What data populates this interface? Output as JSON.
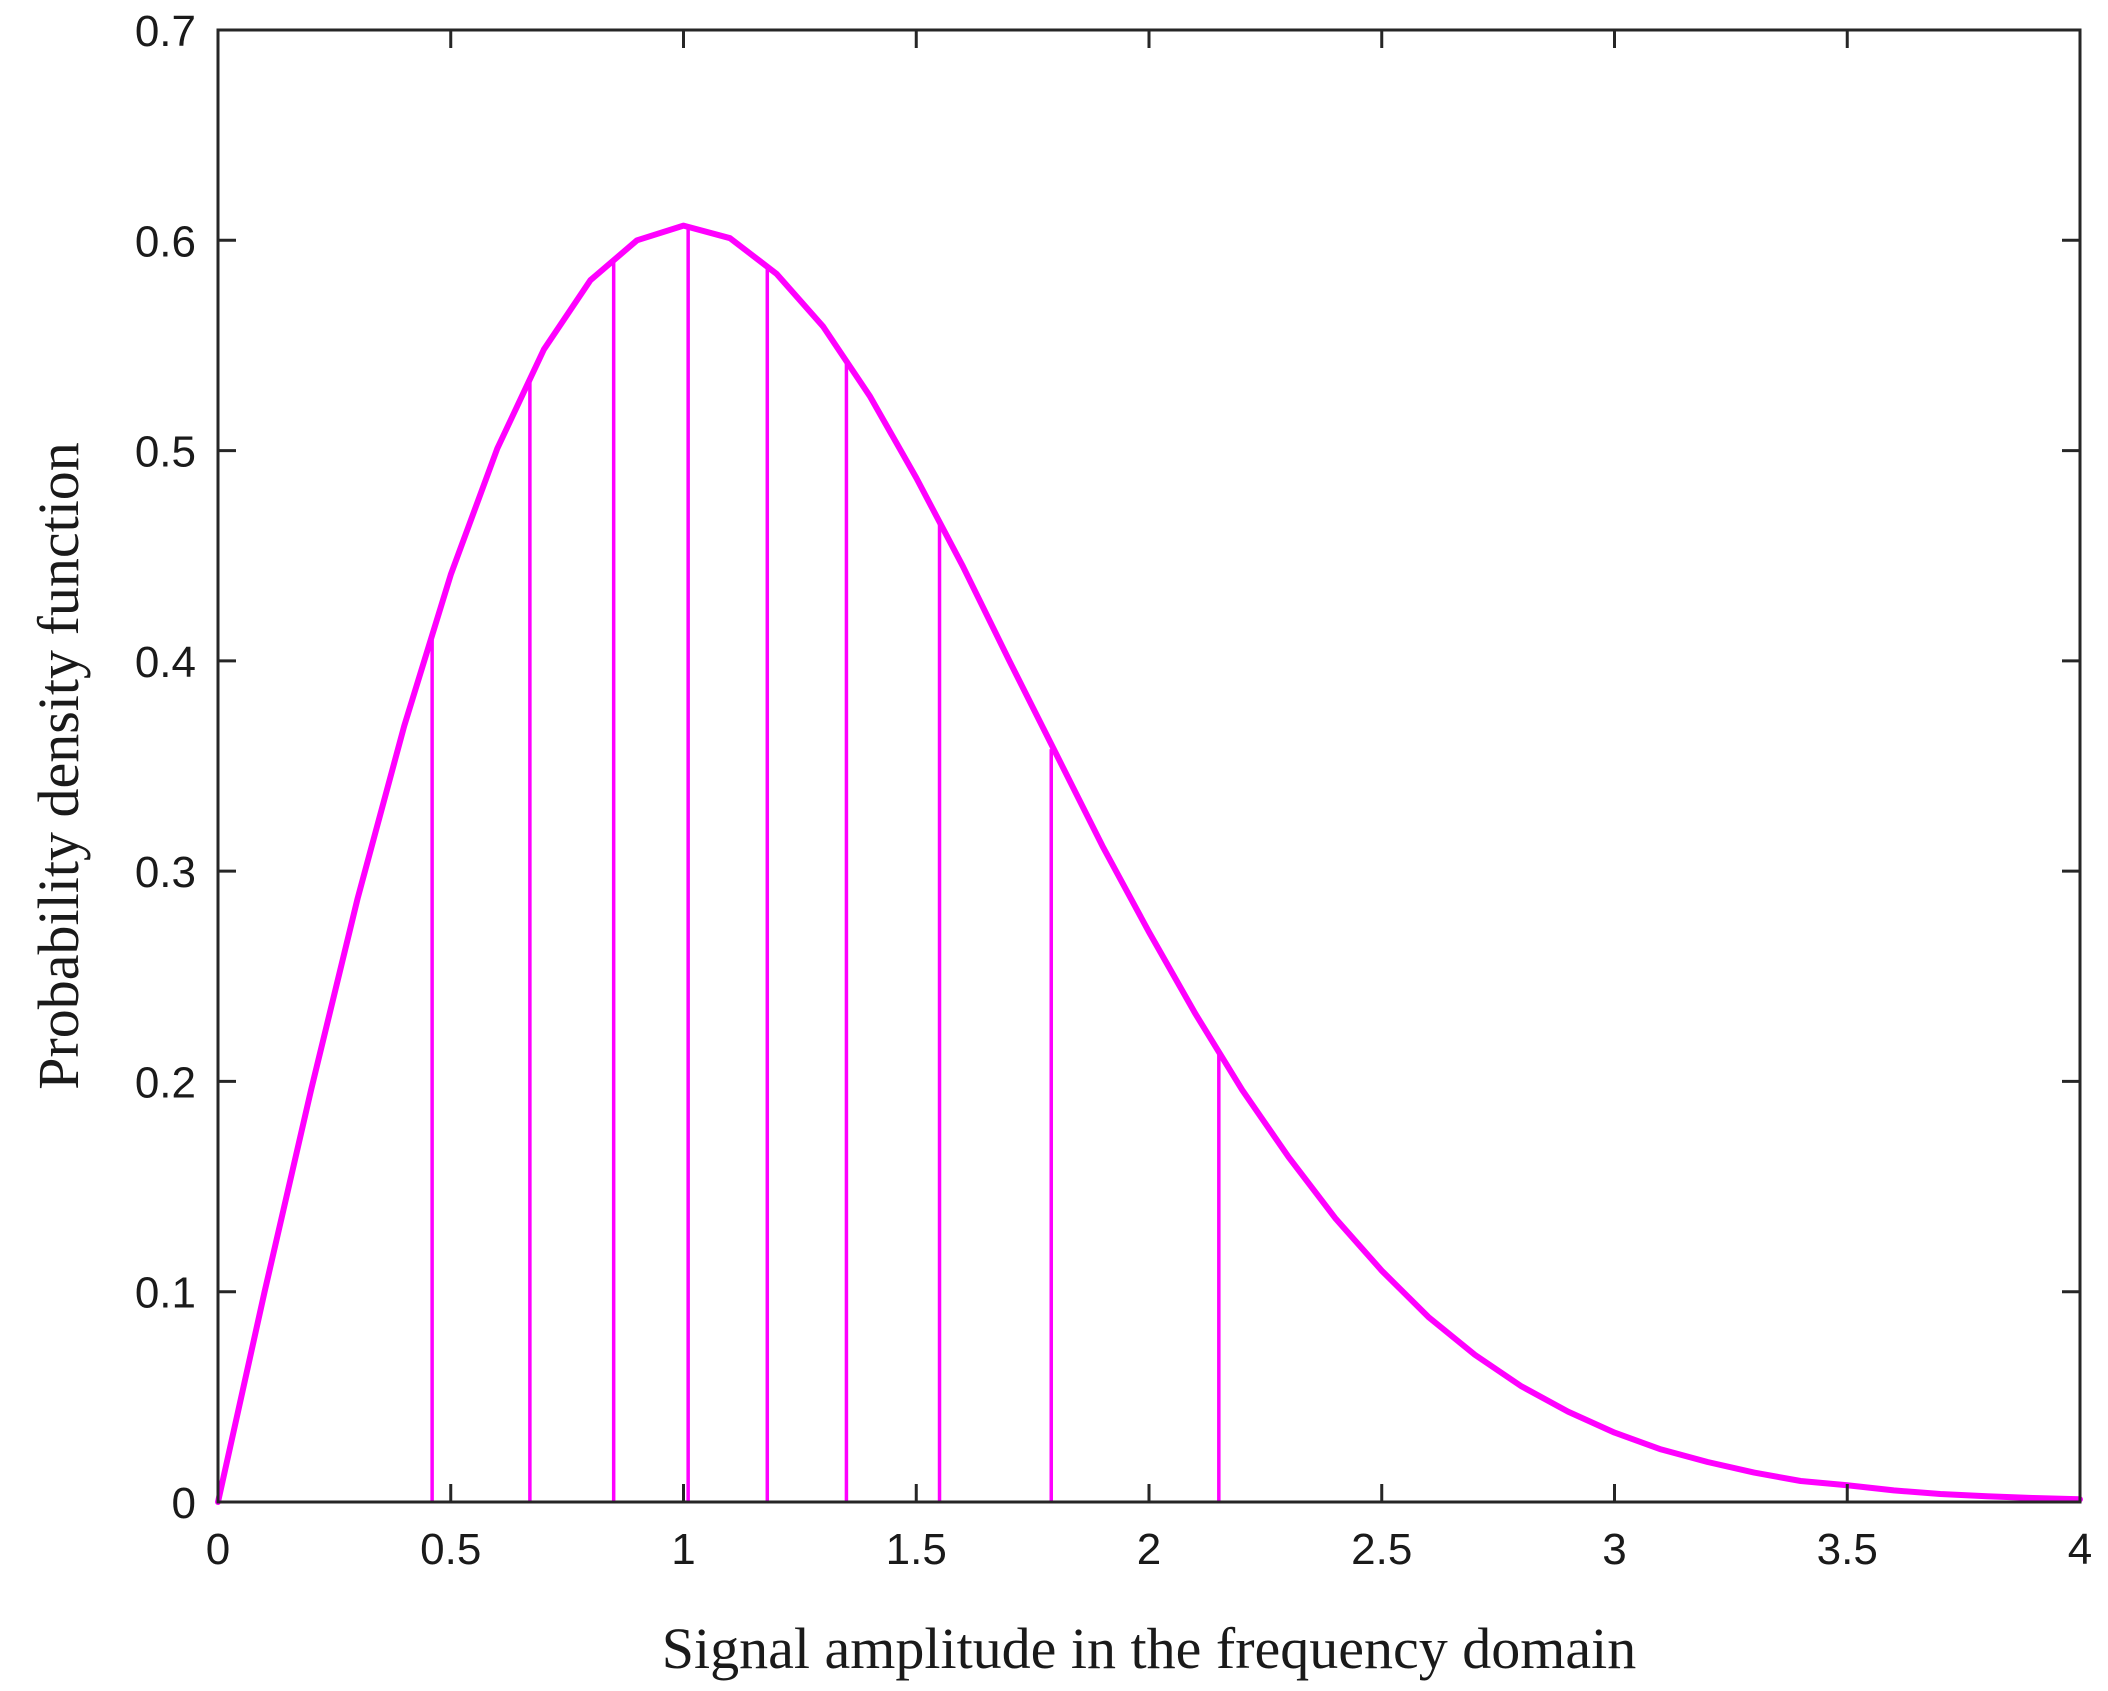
{
  "chart_data": {
    "type": "line",
    "title": "",
    "xlabel": "Signal amplitude in the frequency domain",
    "ylabel": "Probability density function",
    "xlim": [
      0,
      4
    ],
    "ylim": [
      0,
      0.7
    ],
    "grid": false,
    "legend": "none",
    "x_ticks": [
      "0",
      "0.5",
      "1",
      "1.5",
      "2",
      "2.5",
      "3",
      "3.5",
      "4"
    ],
    "y_ticks": [
      "0",
      "0.1",
      "0.2",
      "0.3",
      "0.4",
      "0.5",
      "0.6",
      "0.7"
    ],
    "series": [
      {
        "color": "#ff00ff",
        "x": [
          0,
          0.1,
          0.2,
          0.3,
          0.4,
          0.5,
          0.6,
          0.7,
          0.8,
          0.9,
          1.0,
          1.1,
          1.2,
          1.3,
          1.4,
          1.5,
          1.6,
          1.7,
          1.8,
          1.9,
          2.0,
          2.1,
          2.2,
          2.3,
          2.4,
          2.5,
          2.6,
          2.7,
          2.8,
          2.9,
          3.0,
          3.1,
          3.2,
          3.3,
          3.4,
          3.5,
          3.6,
          3.7,
          3.8,
          3.9,
          4.0
        ],
        "y": [
          0,
          0.1,
          0.196,
          0.287,
          0.369,
          0.441,
          0.501,
          0.548,
          0.581,
          0.6,
          0.607,
          0.601,
          0.584,
          0.559,
          0.526,
          0.487,
          0.445,
          0.4,
          0.356,
          0.312,
          0.271,
          0.232,
          0.196,
          0.164,
          0.135,
          0.11,
          0.088,
          0.07,
          0.055,
          0.043,
          0.033,
          0.025,
          0.019,
          0.014,
          0.01,
          0.008,
          0.0055,
          0.0038,
          0.0027,
          0.0019,
          0.0013
        ]
      }
    ],
    "stems": {
      "color": "#ff00ff",
      "x": [
        0.46,
        0.67,
        0.85,
        1.01,
        1.18,
        1.35,
        1.55,
        1.79,
        2.15
      ],
      "y": [
        0.41,
        0.533,
        0.591,
        0.607,
        0.587,
        0.542,
        0.467,
        0.358,
        0.214
      ]
    }
  }
}
